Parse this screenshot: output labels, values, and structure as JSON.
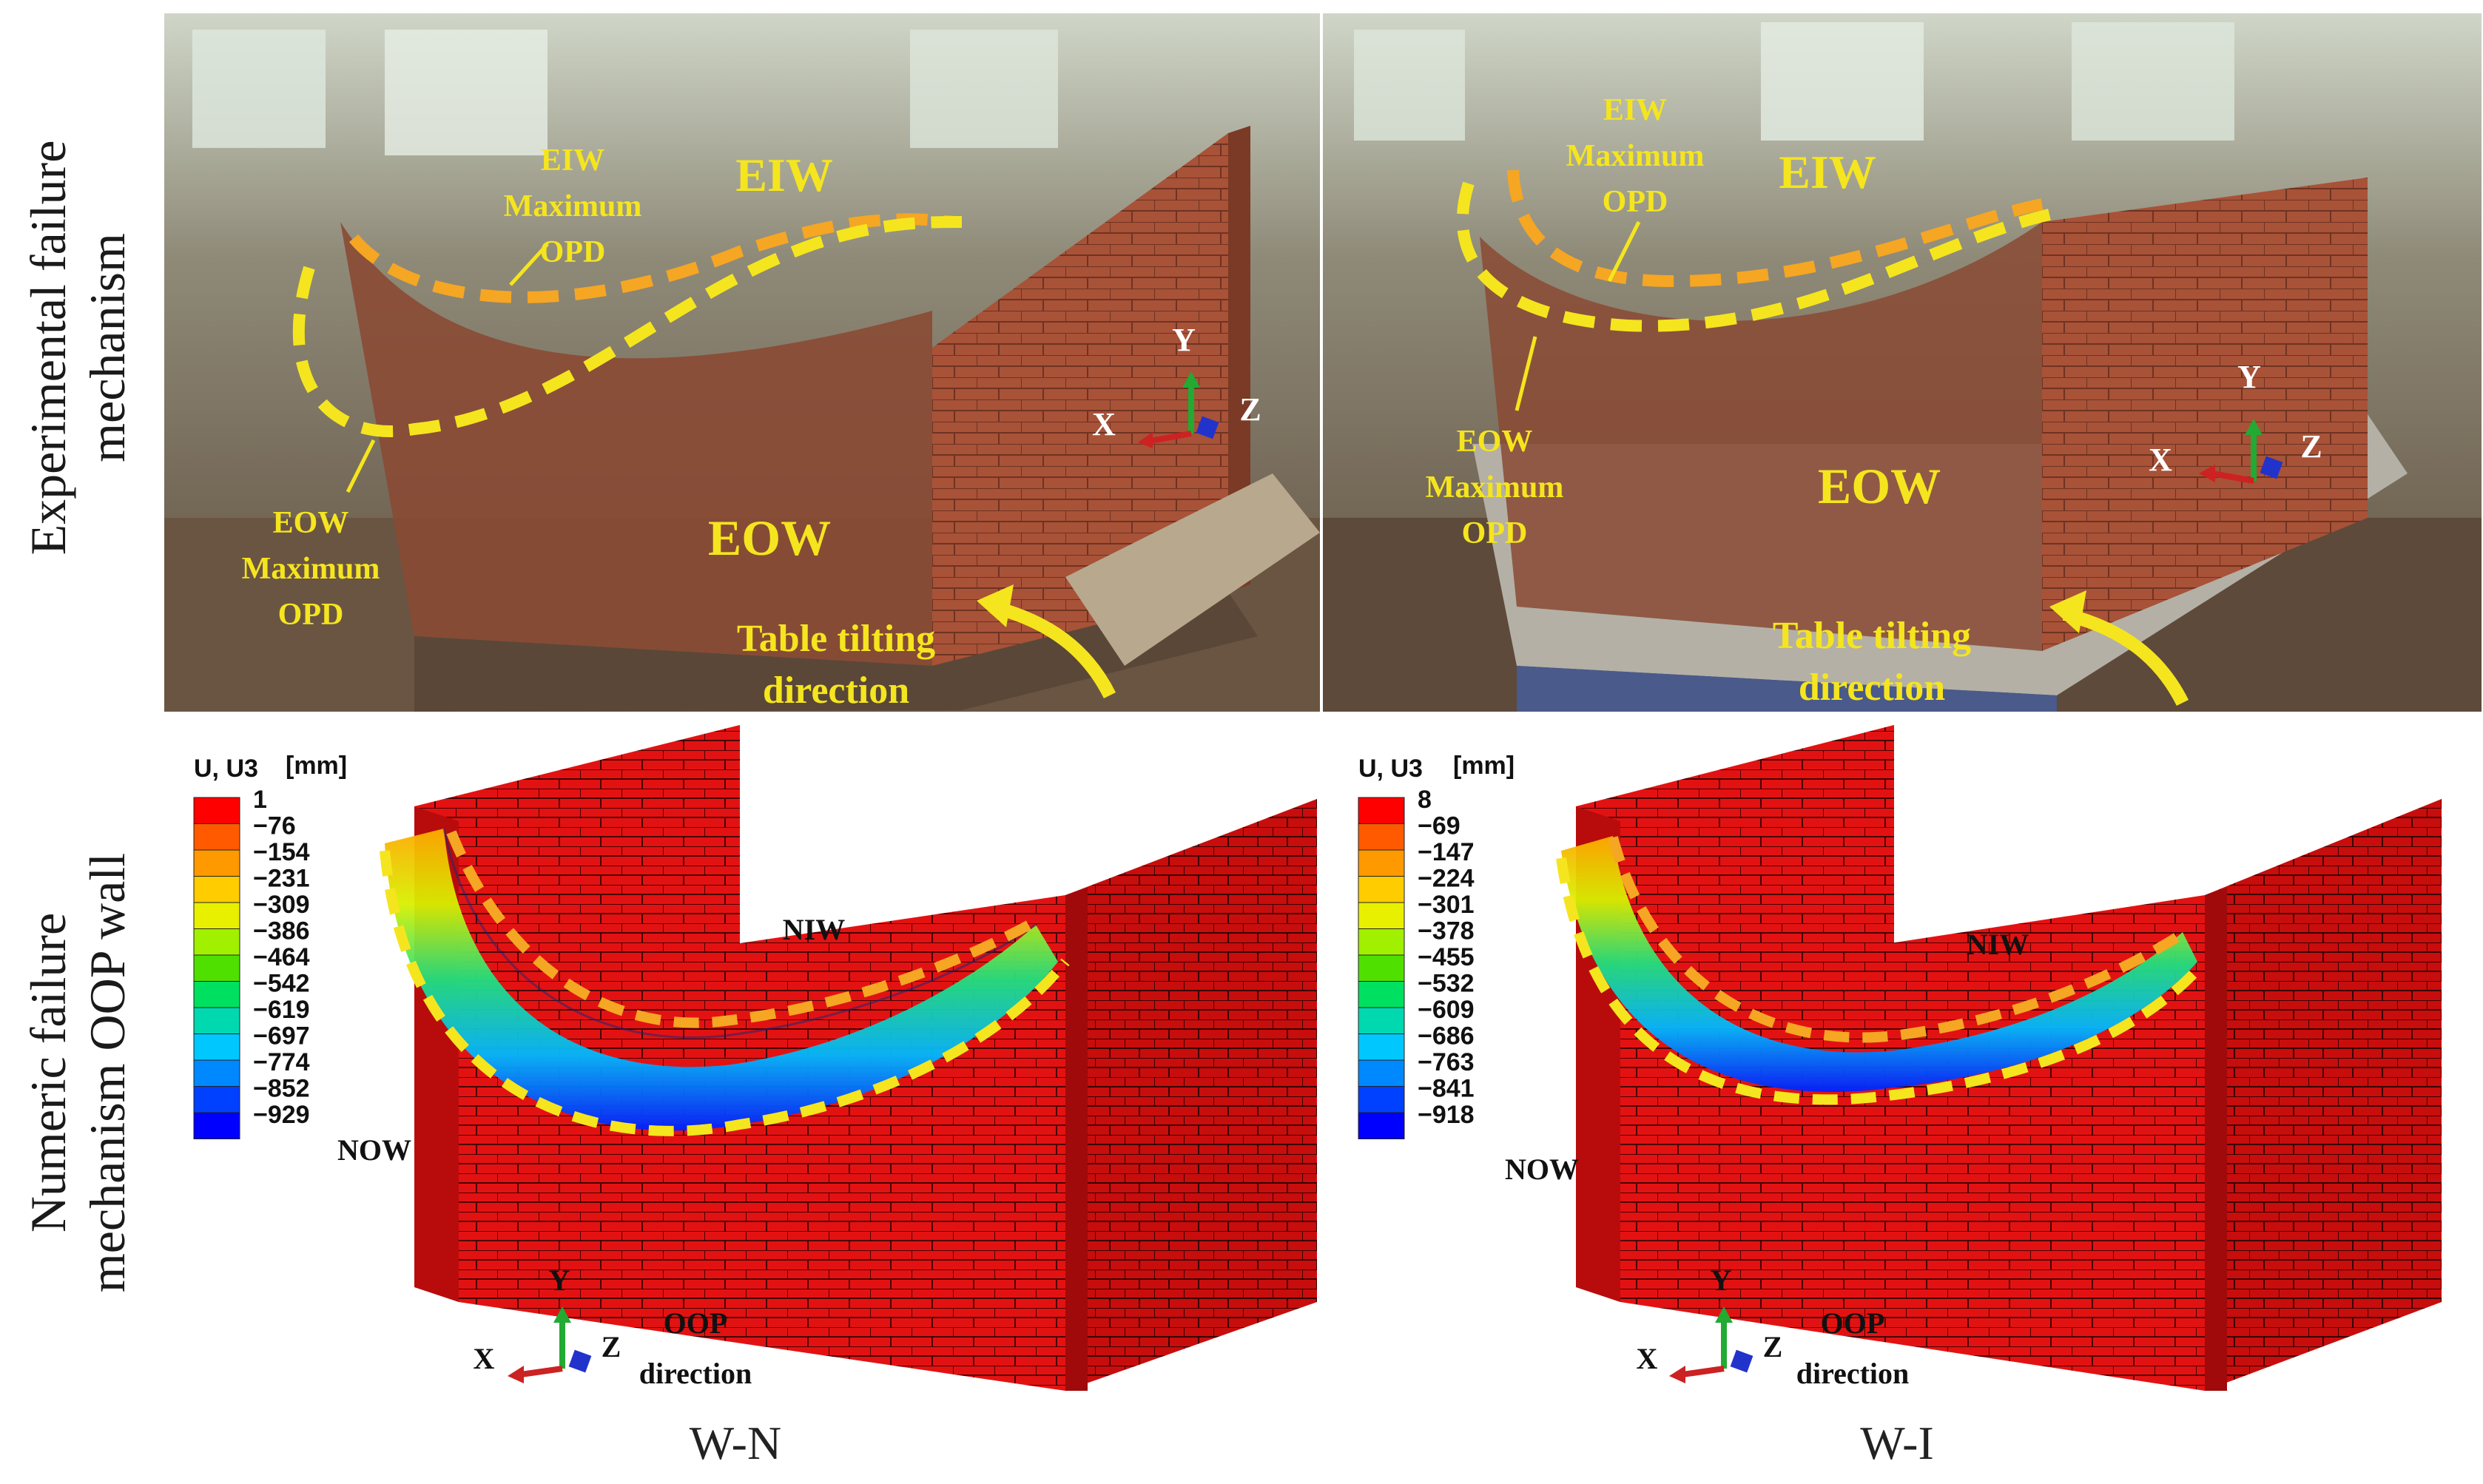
{
  "row_labels": {
    "top_line1": "Experimental failure",
    "top_line2": "mechanism",
    "bottom_line1": "Numeric failure",
    "bottom_line2": "mechanism OOP wall"
  },
  "panels": {
    "photo_left": {
      "eiw_label": "EIW",
      "eiw_max_line1": "EIW",
      "eiw_max_line2": "Maximum",
      "eiw_max_line3": "OPD",
      "eow_label": "EOW",
      "eow_max_line1": "EOW",
      "eow_max_line2": "Maximum",
      "eow_max_line3": "OPD",
      "tilt_line1": "Table tilting",
      "tilt_line2": "direction",
      "axis_x": "X",
      "axis_y": "Y",
      "axis_z": "Z"
    },
    "photo_right": {
      "eiw_label": "EIW",
      "eiw_max_line1": "EIW",
      "eiw_max_line2": "Maximum",
      "eiw_max_line3": "OPD",
      "eow_label": "EOW",
      "eow_max_line1": "EOW",
      "eow_max_line2": "Maximum",
      "eow_max_line3": "OPD",
      "tilt_line1": "Table tilting",
      "tilt_line2": "direction",
      "axis_x": "X",
      "axis_y": "Y",
      "axis_z": "Z"
    },
    "model_left": {
      "legend_title": "U, U3",
      "legend_unit": "[mm]",
      "legend_values": [
        "1",
        "−76",
        "−154",
        "−231",
        "−309",
        "−386",
        "−464",
        "−542",
        "−619",
        "−697",
        "−774",
        "−852",
        "−929"
      ],
      "niw_label": "NIW",
      "now_label": "NOW",
      "oop_line1": "OOP",
      "oop_line2": "direction",
      "axis_x": "X",
      "axis_y": "Y",
      "axis_z": "Z",
      "caption": "W-N"
    },
    "model_right": {
      "legend_title": "U, U3",
      "legend_unit": "[mm]",
      "legend_values": [
        "8",
        "−69",
        "−147",
        "−224",
        "−301",
        "−378",
        "−455",
        "−532",
        "−609",
        "−686",
        "−763",
        "−841",
        "−918"
      ],
      "niw_label": "NIW",
      "now_label": "NOW",
      "oop_line1": "OOP",
      "oop_line2": "direction",
      "axis_x": "X",
      "axis_y": "Y",
      "axis_z": "Z",
      "caption": "W-I"
    }
  },
  "colors": {
    "legend_scale": [
      "#ff0000",
      "#ff5a00",
      "#ff9900",
      "#ffcc00",
      "#e8f000",
      "#a0f000",
      "#50e000",
      "#00e060",
      "#00d8b0",
      "#00c8ff",
      "#0088ff",
      "#0040ff",
      "#0000ff"
    ],
    "annotation_yellow": "#f5e51e",
    "dash_orange": "#f5a623",
    "brick_red": "#e01010"
  }
}
